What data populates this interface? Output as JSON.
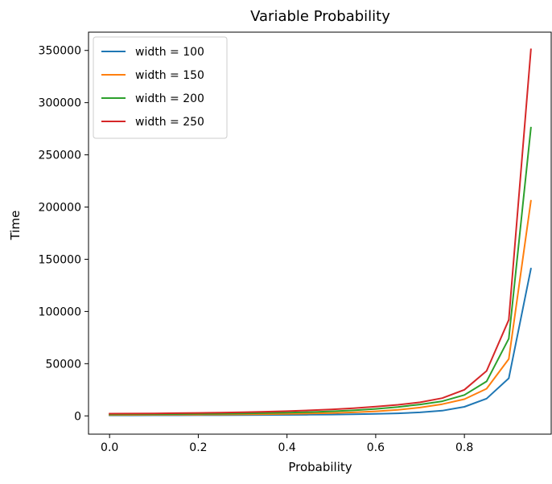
{
  "chart_data": {
    "type": "line",
    "title": "Variable Probability",
    "xlabel": "Probability",
    "ylabel": "Time",
    "xlim": [
      -0.0475,
      0.9975
    ],
    "ylim": [
      -17500,
      367500
    ],
    "xticks": [
      0.0,
      0.2,
      0.4,
      0.6,
      0.8
    ],
    "xtick_labels": [
      "0.0",
      "0.2",
      "0.4",
      "0.6",
      "0.8"
    ],
    "yticks": [
      0,
      50000,
      100000,
      150000,
      200000,
      250000,
      300000,
      350000
    ],
    "ytick_labels": [
      "0",
      "50000",
      "100000",
      "150000",
      "200000",
      "250000",
      "300000",
      "350000"
    ],
    "grid": false,
    "legend": "upper-left",
    "x": [
      0.0,
      0.05,
      0.1,
      0.15,
      0.2,
      0.25,
      0.3,
      0.35,
      0.4,
      0.45,
      0.5,
      0.55,
      0.6,
      0.65,
      0.7,
      0.75,
      0.8,
      0.85,
      0.9,
      0.95
    ],
    "series": [
      {
        "name": "width = 100",
        "color": "#1f77b4",
        "values": [
          500,
          530,
          560,
          600,
          650,
          710,
          780,
          870,
          980,
          1120,
          1300,
          1550,
          1900,
          2450,
          3350,
          5000,
          8700,
          16500,
          36000,
          141000
        ]
      },
      {
        "name": "width = 150",
        "color": "#ff7f0e",
        "values": [
          900,
          960,
          1020,
          1100,
          1200,
          1320,
          1480,
          1680,
          1940,
          2280,
          2750,
          3400,
          4350,
          5800,
          7950,
          11200,
          16000,
          26000,
          54500,
          206000
        ]
      },
      {
        "name": "width = 200",
        "color": "#2ca02c",
        "values": [
          1400,
          1490,
          1590,
          1720,
          1880,
          2080,
          2330,
          2650,
          3080,
          3620,
          4350,
          5300,
          6650,
          8500,
          10900,
          14000,
          20000,
          33000,
          74000,
          276000
        ]
      },
      {
        "name": "width = 250",
        "color": "#d62728",
        "values": [
          2100,
          2230,
          2380,
          2570,
          2810,
          3100,
          3480,
          3950,
          4550,
          5300,
          6250,
          7400,
          8800,
          10600,
          13000,
          17000,
          25000,
          43000,
          92000,
          351000
        ]
      }
    ]
  }
}
